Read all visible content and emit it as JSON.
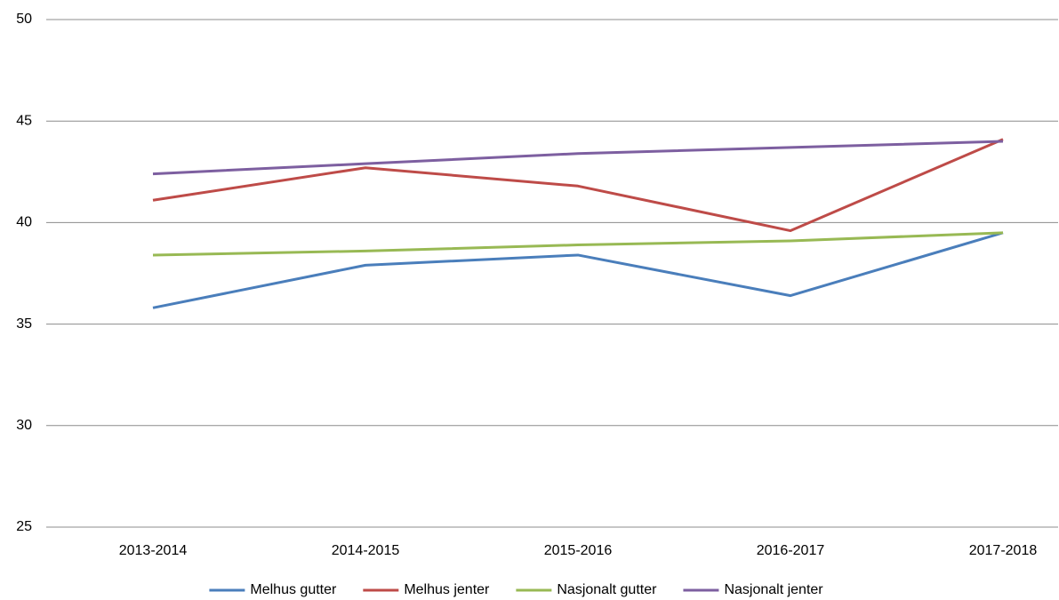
{
  "chart_data": {
    "type": "line",
    "categories": [
      "2013-2014",
      "2014-2015",
      "2015-2016",
      "2016-2017",
      "2017-2018"
    ],
    "series": [
      {
        "name": "Melhus gutter",
        "color": "#4a7ebb",
        "values": [
          35.8,
          37.9,
          38.4,
          36.4,
          39.5
        ]
      },
      {
        "name": "Melhus jenter",
        "color": "#be4b48",
        "values": [
          41.1,
          42.7,
          41.8,
          39.6,
          44.1
        ]
      },
      {
        "name": "Nasjonalt gutter",
        "color": "#98b954",
        "values": [
          38.4,
          38.6,
          38.9,
          39.1,
          39.5
        ]
      },
      {
        "name": "Nasjonalt jenter",
        "color": "#7d5fa0",
        "values": [
          42.4,
          42.9,
          43.4,
          43.7,
          44.0
        ]
      }
    ],
    "ylim": [
      25,
      50
    ],
    "yticks": [
      25,
      30,
      35,
      40,
      45,
      50
    ],
    "grid": true,
    "legend": "bottom"
  }
}
